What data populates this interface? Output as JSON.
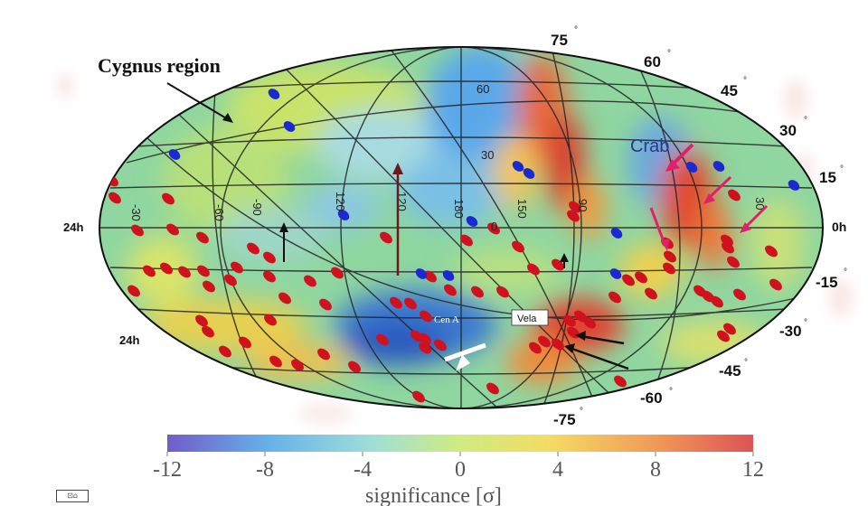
{
  "chart_data": {
    "type": "heatmap",
    "projection": "hammer-aitoff",
    "coordinate_system": "equatorial",
    "title": "",
    "colorbar": {
      "label": "significance [σ]",
      "min": -12,
      "max": 12,
      "ticks": [
        "-12",
        "-8",
        "-4",
        "0",
        "4",
        "8",
        "12"
      ],
      "colors": [
        "#5a3fc0",
        "#4aa3e6",
        "#8fd9d0",
        "#c8e86a",
        "#f2d64a",
        "#ee8a3a",
        "#d8353a"
      ]
    },
    "declination_labels": [
      {
        "value": 75,
        "text": "75"
      },
      {
        "value": 60,
        "text": "60"
      },
      {
        "value": 45,
        "text": "45"
      },
      {
        "value": 30,
        "text": "30"
      },
      {
        "value": 15,
        "text": "15"
      },
      {
        "value": 0,
        "text": "0h"
      },
      {
        "value": -15,
        "text": "-15"
      },
      {
        "value": -30,
        "text": "-30"
      },
      {
        "value": -45,
        "text": "-45"
      },
      {
        "value": -60,
        "text": "-60"
      },
      {
        "value": -75,
        "text": "-75"
      }
    ],
    "ra_labels": [
      {
        "text": "24h",
        "position": "left-equator"
      },
      {
        "text": "24h",
        "position": "left-lower"
      }
    ],
    "inner_grid_labels": [
      "60",
      "30",
      "0",
      "-30",
      "-60",
      "-90",
      "120",
      "180",
      "150",
      "120",
      "90",
      "30"
    ],
    "annotations": [
      {
        "text": "Cygnus region",
        "color": "#111111"
      },
      {
        "text": "Crab",
        "color": "#2a3a8a"
      },
      {
        "text": "Cen A",
        "color": "#ffffff"
      },
      {
        "text": "Vela",
        "color": "#111111"
      }
    ],
    "point_sources": {
      "red_count": 80,
      "blue_count": 14,
      "red_color": "#d0121e",
      "blue_color": "#1a2ad0"
    }
  },
  "ui": {
    "corner_icon": "⊡⌂"
  }
}
